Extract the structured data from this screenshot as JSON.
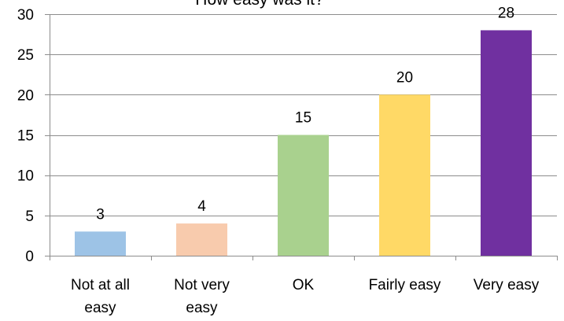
{
  "chart_data": {
    "type": "bar",
    "title": "How easy was it?",
    "categories": [
      [
        "Not at all",
        "easy"
      ],
      [
        "Not very",
        "easy"
      ],
      [
        "OK"
      ],
      [
        "Fairly easy"
      ],
      [
        "Very easy"
      ]
    ],
    "values": [
      3,
      4,
      15,
      20,
      28
    ],
    "colors": [
      "#9dc3e6",
      "#f8cbad",
      "#a9d18e",
      "#ffd966",
      "#7030a0"
    ],
    "ylim": [
      0,
      30
    ],
    "yticks": [
      0,
      5,
      10,
      15,
      20,
      25,
      30
    ],
    "grid": true,
    "legend": "none"
  }
}
